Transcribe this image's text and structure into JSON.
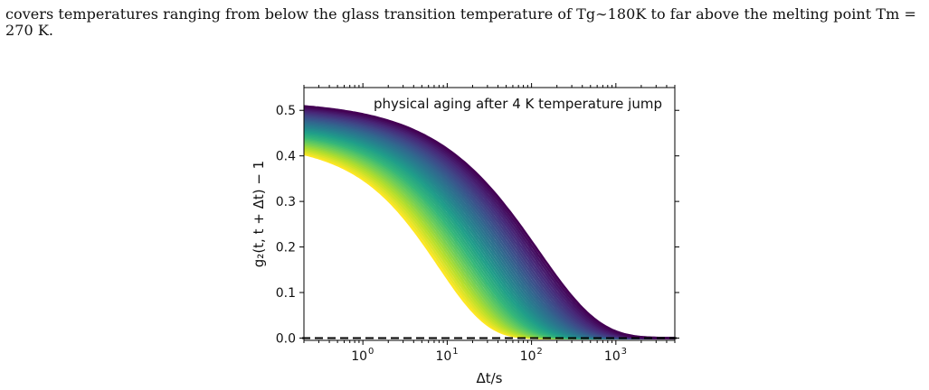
{
  "paper": {
    "line1": "covers temperatures ranging from below the glass transition temperature of Tg∼180K to far above the melting point Tm =",
    "line2": "270 K."
  },
  "chart_data": {
    "type": "line",
    "title": "",
    "annotation": "physical aging after 4 K temperature jump",
    "xlabel": "Δt/s",
    "ylabel": "g₂(t, t + Δt) − 1",
    "x_scale": "log",
    "xlim": [
      0.2,
      5000
    ],
    "ylim": [
      -0.005,
      0.55
    ],
    "yticks": [
      0.0,
      0.1,
      0.2,
      0.3,
      0.4,
      0.5
    ],
    "ytick_labels": [
      "0.0",
      "0.1",
      "0.2",
      "0.3",
      "0.4",
      "0.5"
    ],
    "xticks": [
      1,
      10,
      100,
      1000
    ],
    "xtick_labels": [
      "10",
      "10",
      "10",
      "10"
    ],
    "xtick_exponents": [
      "0",
      "1",
      "2",
      "3"
    ],
    "baseline": 0.0,
    "baseline_style": "dashed",
    "colormap": "viridis",
    "series_count": 40,
    "series_range": {
      "first": {
        "amplitude": 0.52,
        "tau": 120,
        "beta": 0.6,
        "color": "#440154"
      },
      "last": {
        "amplitude": 0.43,
        "tau": 8,
        "beta": 0.75,
        "color": "#fde725"
      }
    }
  }
}
